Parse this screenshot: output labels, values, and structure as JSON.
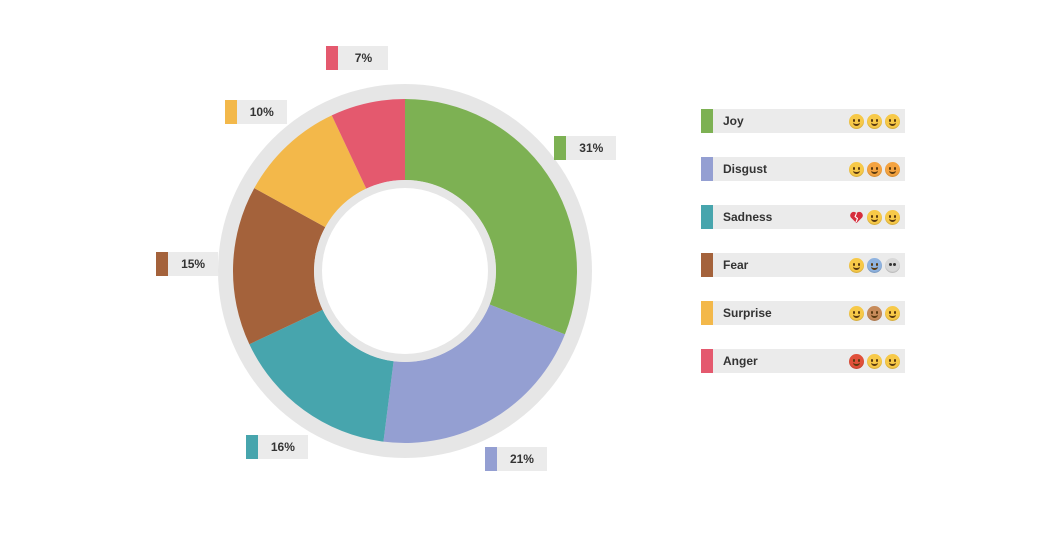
{
  "chart_data": {
    "type": "pie",
    "donut": true,
    "slices": [
      {
        "label": "Joy",
        "value": 31,
        "display": "31%",
        "color": "#7db153"
      },
      {
        "label": "Disgust",
        "value": 21,
        "display": "21%",
        "color": "#949fd2"
      },
      {
        "label": "Sadness",
        "value": 16,
        "display": "16%",
        "color": "#47a5ad"
      },
      {
        "label": "Fear",
        "value": 15,
        "display": "15%",
        "color": "#a4623b"
      },
      {
        "label": "Surprise",
        "value": 10,
        "display": "10%",
        "color": "#f3b84a"
      },
      {
        "label": "Anger",
        "value": 7,
        "display": "7%",
        "color": "#e4596e"
      }
    ],
    "ring_color": "#e6e6e6",
    "legend_placement": "right"
  },
  "legend": [
    {
      "label": "Joy",
      "color": "#7db153",
      "emojis": [
        {
          "name": "grinning-face-icon",
          "color": "#f7c948"
        },
        {
          "name": "beaming-face-icon",
          "color": "#f7c948"
        },
        {
          "name": "smiling-face-icon",
          "color": "#f7c948"
        }
      ]
    },
    {
      "label": "Disgust",
      "color": "#949fd2",
      "emojis": [
        {
          "name": "mask-face-icon",
          "color": "#f7c948"
        },
        {
          "name": "nauseated-face-icon",
          "color": "#f4a340"
        },
        {
          "name": "weary-face-icon",
          "color": "#f4a340"
        }
      ]
    },
    {
      "label": "Sadness",
      "color": "#47a5ad",
      "emojis": [
        {
          "name": "broken-heart-icon",
          "color": "#d62d3c"
        },
        {
          "name": "frowning-face-icon",
          "color": "#f7c948"
        },
        {
          "name": "crying-face-icon",
          "color": "#f7c948"
        }
      ]
    },
    {
      "label": "Fear",
      "color": "#a4623b",
      "emojis": [
        {
          "name": "fearful-face-icon",
          "color": "#f7c948"
        },
        {
          "name": "cold-sweat-face-icon",
          "color": "#8fb3e0"
        },
        {
          "name": "skull-icon",
          "color": "#d8d8d8"
        }
      ]
    },
    {
      "label": "Surprise",
      "color": "#f3b84a",
      "emojis": [
        {
          "name": "flushed-face-icon",
          "color": "#f7c948"
        },
        {
          "name": "monkey-face-icon",
          "color": "#c78b5a"
        },
        {
          "name": "grinning-sweat-face-icon",
          "color": "#f7c948"
        }
      ]
    },
    {
      "label": "Anger",
      "color": "#e4596e",
      "emojis": [
        {
          "name": "pouting-face-icon",
          "color": "#e0503a"
        },
        {
          "name": "steam-face-icon",
          "color": "#f7c948"
        },
        {
          "name": "angry-face-icon",
          "color": "#f7c948"
        }
      ]
    }
  ]
}
